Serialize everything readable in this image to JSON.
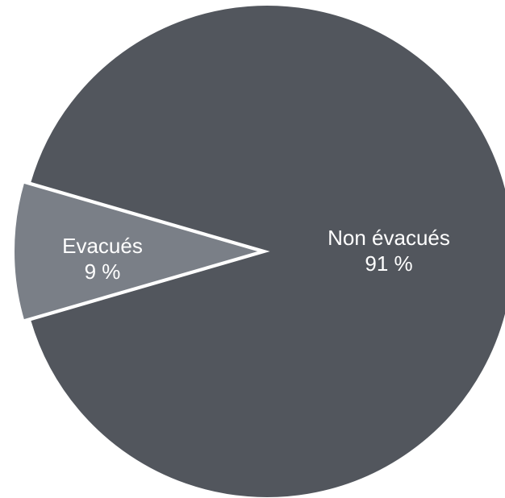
{
  "chart_data": {
    "type": "pie",
    "title": "",
    "slices": [
      {
        "label": "Non évacués",
        "value": 91,
        "value_label": "91 %",
        "color": "#52565d"
      },
      {
        "label": "Evacués",
        "value": 9,
        "value_label": "9 %",
        "color": "#7a7f87"
      }
    ],
    "exploded_slice": "Evacués",
    "legend": "none"
  }
}
